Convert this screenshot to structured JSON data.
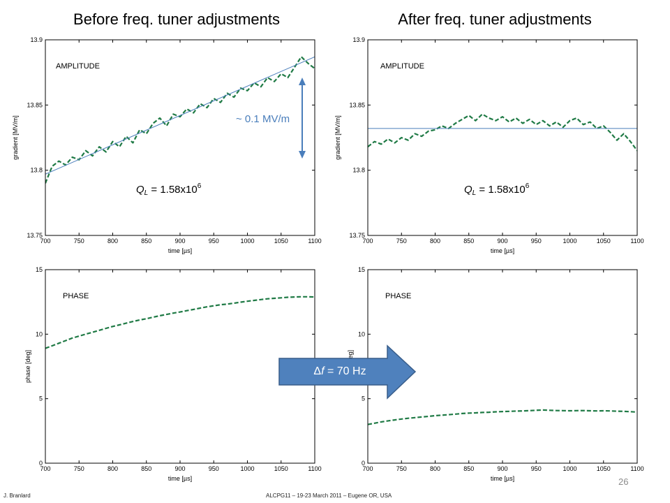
{
  "slide": {
    "titles": {
      "before": "Before freq. tuner adjustments",
      "after": "After freq. tuner adjustments"
    },
    "arrow": {
      "delta": "Δ",
      "variable": "f",
      "value": " = 70 Hz"
    },
    "footer": {
      "author": "J. Branlard",
      "event": "ALCPG11 – 19-23 March 2011 – Eugene OR, USA",
      "page_number": "26"
    },
    "colors": {
      "annotation": "#4a7ebb",
      "arrow_fill": "#4f81bd"
    }
  },
  "chart_data": [
    {
      "type": "line",
      "panel_label": "AMPLITUDE",
      "xlabel": "time [µs]",
      "ylabel": "gradient [MV/m]",
      "xlim": [
        700,
        1100
      ],
      "ylim": [
        13.75,
        13.9
      ],
      "xticks": [
        700,
        750,
        800,
        850,
        900,
        950,
        1000,
        1050,
        1100
      ],
      "xtick_labels": [
        "700",
        "750",
        "800",
        "850",
        "900",
        "950",
        "1000",
        "1050",
        "1100"
      ],
      "yticks": [
        13.75,
        13.8,
        13.85,
        13.9
      ],
      "ytick_labels": [
        "13.75",
        "13.8",
        "13.85",
        "13.9"
      ],
      "grid": false,
      "annotations": {
        "loaded_q": {
          "symbol": "Q",
          "subscript": "L",
          "value": " = 1.58x10",
          "exponent": "6"
        },
        "span": "~ 0.1 MV/m"
      },
      "series": [
        {
          "style": "dashed",
          "color": "#1f7a45",
          "x": [
            700,
            710,
            720,
            730,
            740,
            750,
            760,
            770,
            780,
            790,
            800,
            810,
            820,
            830,
            840,
            850,
            860,
            870,
            880,
            890,
            900,
            910,
            920,
            930,
            940,
            950,
            960,
            970,
            980,
            990,
            1000,
            1010,
            1020,
            1030,
            1040,
            1050,
            1060,
            1070,
            1080,
            1090,
            1100
          ],
          "y": [
            13.79,
            13.803,
            13.807,
            13.804,
            13.81,
            13.808,
            13.815,
            13.811,
            13.818,
            13.814,
            13.822,
            13.818,
            13.826,
            13.821,
            13.831,
            13.828,
            13.836,
            13.84,
            13.834,
            13.843,
            13.841,
            13.847,
            13.844,
            13.851,
            13.848,
            13.855,
            13.852,
            13.859,
            13.856,
            13.863,
            13.861,
            13.867,
            13.864,
            13.871,
            13.868,
            13.874,
            13.871,
            13.879,
            13.887,
            13.882,
            13.878
          ]
        },
        {
          "style": "solid",
          "color": "#4a7ebb",
          "x": [
            700,
            1100
          ],
          "y": [
            13.797,
            13.887
          ]
        }
      ]
    },
    {
      "type": "line",
      "panel_label": "AMPLITUDE",
      "xlabel": "time [µs]",
      "ylabel": "gradient [MV/m]",
      "xlim": [
        700,
        1100
      ],
      "ylim": [
        13.75,
        13.9
      ],
      "xticks": [
        700,
        750,
        800,
        850,
        900,
        950,
        1000,
        1050,
        1100
      ],
      "xtick_labels": [
        "700",
        "750",
        "800",
        "850",
        "900",
        "950",
        "1000",
        "1050",
        "1100"
      ],
      "yticks": [
        13.75,
        13.8,
        13.85,
        13.9
      ],
      "ytick_labels": [
        "13.75",
        "13.8",
        "13.85",
        "13.9"
      ],
      "grid": false,
      "annotations": {
        "loaded_q": {
          "symbol": "Q",
          "subscript": "L",
          "value": " = 1.58x10",
          "exponent": "6"
        }
      },
      "series": [
        {
          "style": "dashed",
          "color": "#1f7a45",
          "x": [
            700,
            710,
            720,
            730,
            740,
            750,
            760,
            770,
            780,
            790,
            800,
            810,
            820,
            830,
            840,
            850,
            860,
            870,
            880,
            890,
            900,
            910,
            920,
            930,
            940,
            950,
            960,
            970,
            980,
            990,
            1000,
            1010,
            1020,
            1030,
            1040,
            1050,
            1060,
            1070,
            1080,
            1090,
            1100
          ],
          "y": [
            13.818,
            13.822,
            13.82,
            13.824,
            13.821,
            13.825,
            13.823,
            13.828,
            13.826,
            13.83,
            13.831,
            13.834,
            13.832,
            13.836,
            13.839,
            13.842,
            13.838,
            13.843,
            13.84,
            13.838,
            13.841,
            13.837,
            13.84,
            13.836,
            13.839,
            13.835,
            13.838,
            13.834,
            13.837,
            13.833,
            13.838,
            13.84,
            13.835,
            13.837,
            13.832,
            13.834,
            13.829,
            13.823,
            13.828,
            13.822,
            13.815
          ]
        },
        {
          "style": "solid",
          "color": "#4a7ebb",
          "x": [
            700,
            1100
          ],
          "y": [
            13.832,
            13.832
          ]
        }
      ]
    },
    {
      "type": "line",
      "panel_label": "PHASE",
      "xlabel": "time [µs]",
      "ylabel": "phase [deg]",
      "xlim": [
        700,
        1100
      ],
      "ylim": [
        0,
        15
      ],
      "xticks": [
        700,
        750,
        800,
        850,
        900,
        950,
        1000,
        1050,
        1100
      ],
      "xtick_labels": [
        "700",
        "750",
        "800",
        "850",
        "900",
        "950",
        "1000",
        "1050",
        "1100"
      ],
      "yticks": [
        0,
        5,
        10,
        15
      ],
      "ytick_labels": [
        "0",
        "5",
        "10",
        "15"
      ],
      "grid": false,
      "series": [
        {
          "style": "dashed",
          "color": "#1f7a45",
          "x": [
            700,
            710,
            720,
            730,
            740,
            750,
            760,
            770,
            780,
            790,
            800,
            810,
            820,
            830,
            840,
            850,
            860,
            870,
            880,
            890,
            900,
            910,
            920,
            930,
            940,
            950,
            960,
            970,
            980,
            990,
            1000,
            1010,
            1020,
            1030,
            1040,
            1050,
            1060,
            1070,
            1080,
            1090,
            1100
          ],
          "y": [
            8.9,
            9.1,
            9.3,
            9.5,
            9.7,
            9.85,
            10.0,
            10.15,
            10.3,
            10.45,
            10.6,
            10.72,
            10.85,
            10.98,
            11.1,
            11.2,
            11.32,
            11.43,
            11.53,
            11.63,
            11.72,
            11.82,
            11.92,
            12.02,
            12.12,
            12.2,
            12.28,
            12.33,
            12.4,
            12.48,
            12.55,
            12.62,
            12.68,
            12.74,
            12.78,
            12.82,
            12.86,
            12.88,
            12.9,
            12.9,
            12.88
          ]
        }
      ]
    },
    {
      "type": "line",
      "panel_label": "PHASE",
      "xlabel": "time [µs]",
      "ylabel": "phase [deg]",
      "xlim": [
        700,
        1100
      ],
      "ylim": [
        0,
        15
      ],
      "xticks": [
        700,
        750,
        800,
        850,
        900,
        950,
        1000,
        1050,
        1100
      ],
      "xtick_labels": [
        "700",
        "750",
        "800",
        "850",
        "900",
        "950",
        "1000",
        "1050",
        "1100"
      ],
      "yticks": [
        0,
        5,
        10,
        15
      ],
      "ytick_labels": [
        "0",
        "5",
        "10",
        "15"
      ],
      "grid": false,
      "series": [
        {
          "style": "dashed",
          "color": "#1f7a45",
          "x": [
            700,
            710,
            720,
            730,
            740,
            750,
            760,
            770,
            780,
            790,
            800,
            810,
            820,
            830,
            840,
            850,
            860,
            870,
            880,
            890,
            900,
            910,
            920,
            930,
            940,
            950,
            960,
            970,
            980,
            990,
            1000,
            1010,
            1020,
            1030,
            1040,
            1050,
            1060,
            1070,
            1080,
            1090,
            1100
          ],
          "y": [
            3.0,
            3.1,
            3.2,
            3.28,
            3.35,
            3.42,
            3.48,
            3.53,
            3.58,
            3.63,
            3.68,
            3.72,
            3.76,
            3.8,
            3.85,
            3.88,
            3.9,
            3.93,
            3.95,
            3.98,
            4.0,
            4.02,
            4.04,
            4.05,
            4.07,
            4.1,
            4.12,
            4.1,
            4.08,
            4.07,
            4.06,
            4.07,
            4.08,
            4.06,
            4.05,
            4.06,
            4.05,
            4.03,
            4.02,
            3.99,
            3.96
          ]
        }
      ]
    }
  ]
}
